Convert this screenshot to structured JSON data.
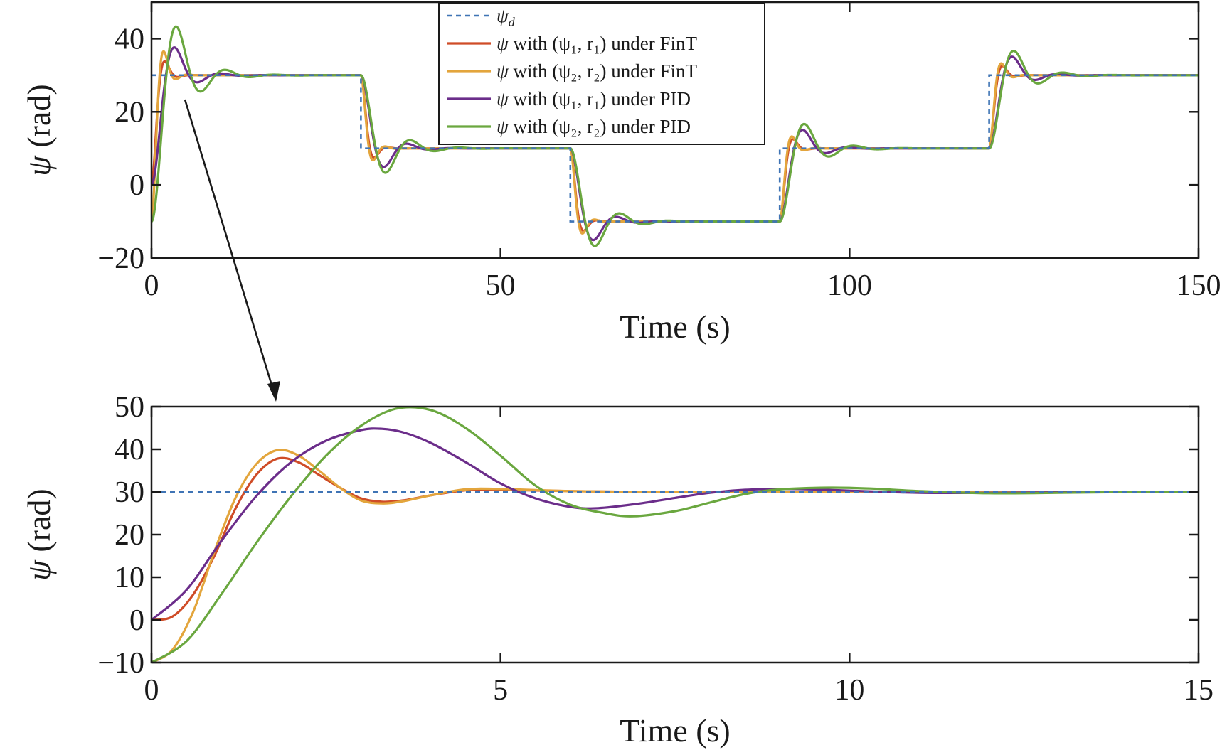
{
  "colors": {
    "reference": "#3f74b5",
    "fint_1": "#cf4c27",
    "fint_2": "#e3a53c",
    "pid_1": "#6b2d8a",
    "pid_2": "#6aa73f",
    "axis": "#1a1a1a"
  },
  "legend": {
    "entries": [
      {
        "series": "psi_d",
        "symbol": "ψ",
        "sub": "d",
        "rest": ""
      },
      {
        "series": "fint_1",
        "symbol": "ψ",
        "sub": "",
        "rest": " with (ψ₁, r₁) under FinT"
      },
      {
        "series": "fint_2",
        "symbol": "ψ",
        "sub": "",
        "rest": " with (ψ₂, r₂) under FinT"
      },
      {
        "series": "pid_1",
        "symbol": "ψ",
        "sub": "",
        "rest": " with (ψ₁, r₁) under PID"
      },
      {
        "series": "pid_2",
        "symbol": "ψ",
        "sub": "",
        "rest": " with (ψ₂, r₂) under PID"
      }
    ]
  },
  "annotation": {
    "type": "arrow",
    "from_panel": "top",
    "to_panel": "bottom",
    "meaning": "zoom of 0–15 s"
  },
  "chart_data": [
    {
      "type": "line",
      "panel": "top",
      "xlabel": "Time (s)",
      "ylabel_symbol": "ψ",
      "ylabel_unit": " (rad)",
      "xlim": [
        0,
        150
      ],
      "ylim": [
        -20,
        50
      ],
      "xticks": [
        0,
        50,
        100,
        150
      ],
      "yticks": [
        -20,
        0,
        20,
        40
      ],
      "xtick_labels": [
        "0",
        "50",
        "100",
        "150"
      ],
      "ytick_labels": [
        "−20",
        "0",
        "20",
        "40"
      ],
      "grid": false,
      "legend_position": "top-center",
      "reference": {
        "name": "ψd",
        "x": [
          0,
          30,
          30,
          60,
          60,
          90,
          90,
          120,
          120,
          150
        ],
        "y": [
          30,
          30,
          10,
          10,
          -10,
          -10,
          10,
          10,
          30,
          30
        ]
      },
      "series": [
        {
          "key": "fint_1",
          "initial": 0,
          "setpoints": [
            [
              0,
              30
            ],
            [
              30,
              10
            ],
            [
              60,
              -10
            ],
            [
              90,
              10
            ],
            [
              120,
              30
            ]
          ]
        },
        {
          "key": "fint_2",
          "initial": -10,
          "setpoints": [
            [
              0,
              30
            ],
            [
              30,
              10
            ],
            [
              60,
              -10
            ],
            [
              90,
              10
            ],
            [
              120,
              30
            ]
          ]
        },
        {
          "key": "pid_1",
          "initial": 0,
          "setpoints": [
            [
              0,
              30
            ],
            [
              30,
              10
            ],
            [
              60,
              -10
            ],
            [
              90,
              10
            ],
            [
              120,
              30
            ]
          ]
        },
        {
          "key": "pid_2",
          "initial": -10,
          "setpoints": [
            [
              0,
              30
            ],
            [
              30,
              10
            ],
            [
              60,
              -10
            ],
            [
              90,
              10
            ],
            [
              120,
              30
            ]
          ]
        }
      ]
    },
    {
      "type": "line",
      "panel": "bottom",
      "xlabel": "Time (s)",
      "ylabel_symbol": "ψ",
      "ylabel_unit": " (rad)",
      "xlim": [
        0,
        15
      ],
      "ylim": [
        -10,
        50
      ],
      "xticks": [
        0,
        5,
        10,
        15
      ],
      "yticks": [
        -10,
        0,
        10,
        20,
        30,
        40,
        50
      ],
      "xtick_labels": [
        "0",
        "5",
        "10",
        "15"
      ],
      "ytick_labels": [
        "−10",
        "0",
        "10",
        "20",
        "30",
        "40",
        "50"
      ],
      "grid": false,
      "reference": {
        "name": "ψd",
        "x": [
          0,
          15
        ],
        "y": [
          30,
          30
        ]
      },
      "series": [
        {
          "key": "fint_1",
          "x": [
            0,
            0.3,
            0.6,
            0.9,
            1.2,
            1.5,
            1.8,
            2.1,
            2.4,
            2.7,
            3.0,
            3.3,
            3.6,
            4.0,
            4.5,
            5.0,
            6.0,
            7.0,
            8.0,
            9.0,
            10.0,
            12.0,
            15.0
          ],
          "y": [
            0,
            0.8,
            6,
            15,
            26,
            34,
            37.8,
            37,
            34,
            31,
            28.5,
            27.7,
            28.0,
            29.2,
            30.4,
            30.5,
            30.2,
            30.0,
            30.0,
            30.0,
            30.0,
            30.0,
            30.0
          ]
        },
        {
          "key": "fint_2",
          "x": [
            0,
            0.3,
            0.6,
            0.9,
            1.2,
            1.5,
            1.8,
            2.1,
            2.4,
            2.7,
            3.0,
            3.3,
            3.6,
            4.0,
            4.5,
            5.0,
            6.0,
            7.0,
            8.0,
            9.0,
            10.0,
            12.0,
            15.0
          ],
          "y": [
            -10,
            -7,
            2,
            16,
            28.5,
            36.5,
            39.8,
            38.6,
            35,
            31,
            28,
            27.3,
            27.8,
            29.2,
            30.6,
            30.7,
            30.2,
            30.0,
            30.0,
            30.0,
            30.0,
            30.0,
            30.0
          ]
        },
        {
          "key": "pid_1",
          "x": [
            0,
            0.5,
            1.0,
            1.5,
            2.0,
            2.5,
            3.0,
            3.3,
            3.6,
            4.0,
            4.5,
            5.0,
            5.5,
            6.0,
            6.4,
            7.0,
            7.5,
            8.0,
            8.5,
            9.0,
            9.5,
            10.0,
            11.0,
            12.0,
            13.0,
            14.0,
            15.0
          ],
          "y": [
            0,
            7,
            18.5,
            29,
            37,
            42,
            44.5,
            44.8,
            44,
            41.5,
            37,
            32,
            28.5,
            26.5,
            26.2,
            27.3,
            28.6,
            29.8,
            30.5,
            30.7,
            30.6,
            30.3,
            29.8,
            29.8,
            29.9,
            30.0,
            30.0
          ]
        },
        {
          "key": "pid_2",
          "x": [
            0,
            0.5,
            1.0,
            1.5,
            2.0,
            2.5,
            3.0,
            3.5,
            4.0,
            4.5,
            5.0,
            5.5,
            6.0,
            6.5,
            6.9,
            7.5,
            8.0,
            8.5,
            9.0,
            9.7,
            10.3,
            11.0,
            12.0,
            13.0,
            14.0,
            15.0
          ],
          "y": [
            -10,
            -5,
            6,
            18,
            29,
            38.5,
            45.5,
            49.5,
            49.2,
            45,
            38.5,
            31.5,
            27,
            25,
            24.3,
            25.5,
            27.5,
            29.5,
            30.6,
            31.0,
            30.8,
            30.2,
            29.7,
            29.8,
            30.0,
            30.0
          ]
        }
      ]
    }
  ]
}
